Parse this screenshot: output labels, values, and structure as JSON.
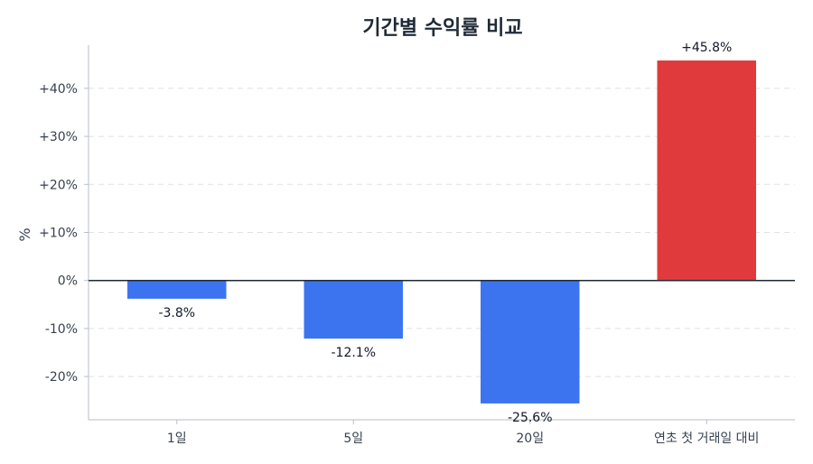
{
  "chart_data": {
    "type": "bar",
    "title": "기간별 수익률 비교",
    "xlabel": "",
    "ylabel": "%",
    "categories": [
      "1일",
      "5일",
      "20일",
      "연초 첫 거래일 대비"
    ],
    "values": [
      -3.8,
      -12.1,
      -25.6,
      45.8
    ],
    "data_labels": [
      "-3.8%",
      "-12.1%",
      "-25.6%",
      "+45.8%"
    ],
    "yticks": [
      -20,
      -10,
      0,
      10,
      20,
      30,
      40
    ],
    "ytick_labels": [
      "-20%",
      "-10%",
      "0%",
      "+10%",
      "+20%",
      "+30%",
      "+40%"
    ],
    "ylim": [
      -29,
      49
    ],
    "grid": true,
    "colors": {
      "negative": "#3b74ee",
      "positive": "#e03a3c"
    }
  }
}
